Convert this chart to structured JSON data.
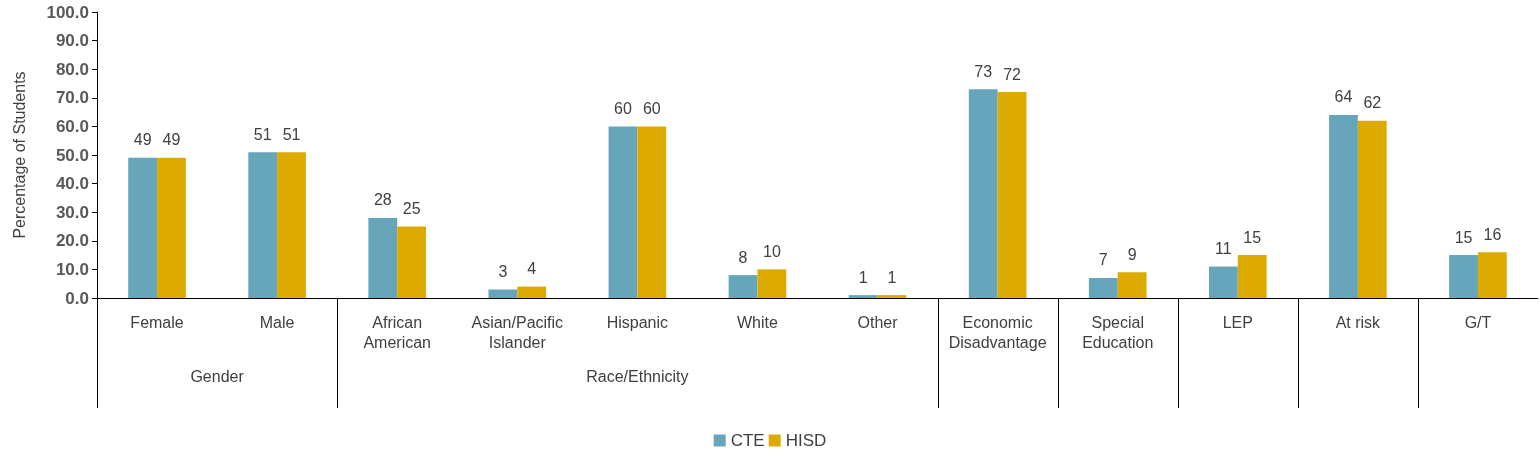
{
  "chart_data": {
    "type": "bar",
    "ylabel": "Percentage of Students",
    "categories": [
      "Female",
      "Male",
      "African American",
      "Asian/Pacific Islander",
      "Hispanic",
      "White",
      "Other",
      "Economic Disadvantage",
      "Special Education",
      "LEP",
      "At risk",
      "G/T"
    ],
    "series": [
      {
        "name": "CTE",
        "color": "#67a5ba",
        "values": [
          49,
          51,
          28,
          3,
          60,
          8,
          1,
          73,
          7,
          11,
          64,
          15
        ]
      },
      {
        "name": "HISD",
        "color": "#dcaa00",
        "values": [
          49,
          51,
          25,
          4,
          60,
          10,
          1,
          72,
          9,
          15,
          62,
          16
        ]
      }
    ],
    "ylim": [
      0,
      100
    ],
    "yticks": [
      {
        "value": 0,
        "label": "0.0"
      },
      {
        "value": 10,
        "label": "10.0"
      },
      {
        "value": 20,
        "label": "20.0"
      },
      {
        "value": 30,
        "label": "30.0"
      },
      {
        "value": 40,
        "label": "40.0"
      },
      {
        "value": 50,
        "label": "50.0"
      },
      {
        "value": 60,
        "label": "60.0"
      },
      {
        "value": 70,
        "label": "70.0"
      },
      {
        "value": 80,
        "label": "80.0"
      },
      {
        "value": 90,
        "label": "90.0"
      },
      {
        "value": 100,
        "label": "100.0"
      }
    ],
    "annotations": [
      "Gender",
      "Race/Ethnicity"
    ],
    "data_labels": true,
    "grid": false,
    "legend": "bottom"
  }
}
